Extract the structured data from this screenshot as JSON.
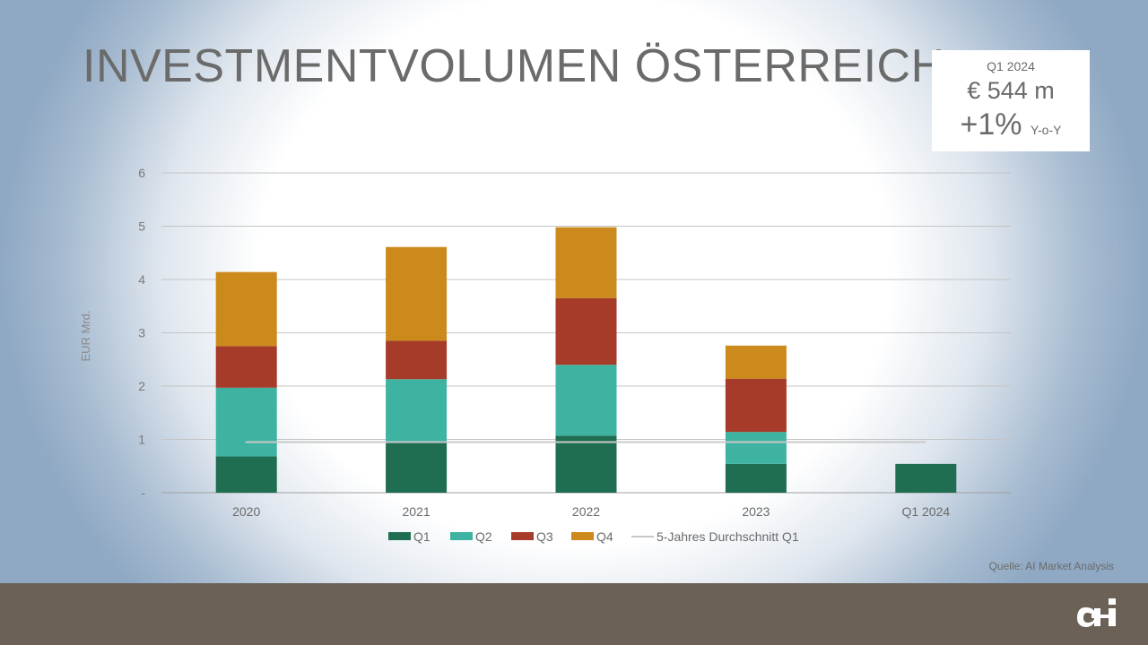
{
  "title": "INVESTMENTVOLUMEN ÖSTERREICH",
  "kpi": {
    "period": "Q1 2024",
    "amount": "€ 544 m",
    "change": "+1%",
    "change_unit": "Y-o-Y"
  },
  "source": "Quelle: AI Market Analysis",
  "colors": {
    "q1": "#1f6e52",
    "q2": "#3fb3a2",
    "q3": "#a53b28",
    "q4": "#cc8a1c",
    "avg_line": "#c8c8c8",
    "footer": "#6b6157"
  },
  "chart_data": {
    "type": "bar",
    "stacked": true,
    "categories": [
      "2020",
      "2021",
      "2022",
      "2023",
      "Q1 2024"
    ],
    "series": [
      {
        "name": "Q1",
        "values": [
          0.68,
          0.95,
          1.07,
          0.54,
          0.54
        ]
      },
      {
        "name": "Q2",
        "values": [
          1.29,
          1.18,
          1.33,
          0.6,
          0
        ]
      },
      {
        "name": "Q3",
        "values": [
          0.78,
          0.72,
          1.25,
          1.0,
          0
        ]
      },
      {
        "name": "Q4",
        "values": [
          1.39,
          1.76,
          1.33,
          0.62,
          0
        ]
      }
    ],
    "reference_line": {
      "name": "5-Jahres Durchschnitt Q1",
      "value": 0.95
    },
    "ylabel": "EUR Mrd.",
    "ylim": [
      0,
      6
    ],
    "yticks": [
      "-",
      "1",
      "2",
      "3",
      "4",
      "5",
      "6"
    ],
    "grid": true,
    "legend_position": "bottom"
  }
}
